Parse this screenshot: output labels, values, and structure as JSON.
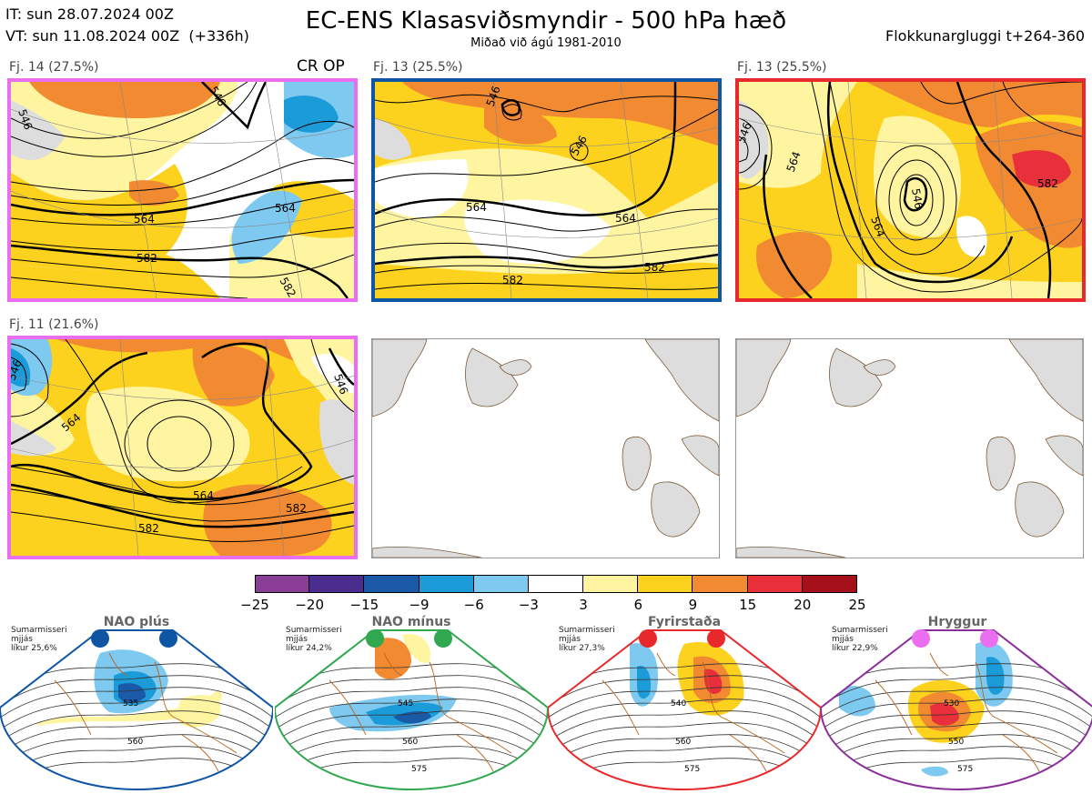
{
  "header": {
    "it_line": "IT: sun 28.07.2024 00Z",
    "vt_line": "VT: sun 11.08.2024 00Z  (+336h)",
    "title": "EC-ENS Klasasviðsmyndir - 500 hPa hæð",
    "subtitle": "Miðað við ágú 1981-2010",
    "window": "Flokkunargluggi t+264-360"
  },
  "panels": [
    {
      "label": "Fj. 14 (27.5%)",
      "extra": "CR OP",
      "border": "#ea6ff0"
    },
    {
      "label": "Fj. 13 (25.5%)",
      "extra": "",
      "border": "#0e55a4"
    },
    {
      "label": "Fj. 13 (25.5%)",
      "extra": "",
      "border": "#e8292b"
    },
    {
      "label": "Fj. 11 (21.6%)",
      "extra": "",
      "border": "#ea6ff0"
    },
    {
      "label": "",
      "extra": "",
      "border": "#888888"
    },
    {
      "label": "",
      "extra": "",
      "border": "#888888"
    }
  ],
  "contour_labels": {
    "p1": [
      "546",
      "546",
      "564",
      "564",
      "582",
      "582"
    ],
    "p2": [
      "546",
      "546",
      "564",
      "564",
      "582",
      "582"
    ],
    "p3": [
      "546",
      "546",
      "564",
      "564",
      "582"
    ],
    "p4": [
      "546",
      "546",
      "564",
      "564",
      "582",
      "582"
    ]
  },
  "chart_data": {
    "type": "heatmap",
    "title": "EC-ENS Klasasviðsmyndir - 500 hPa hæð",
    "colorbar": {
      "ticks": [
        "−25",
        "−20",
        "−15",
        "−9",
        "−6",
        "−3",
        "3",
        "6",
        "9",
        "15",
        "20",
        "25"
      ],
      "colors": [
        "#8a3e98",
        "#4a2d8f",
        "#1a5aa6",
        "#1c9bd9",
        "#7ec9ef",
        "#ffffff",
        "#fff5a0",
        "#fcd21e",
        "#f28a32",
        "#e8303a",
        "#a6101a"
      ]
    }
  },
  "regimes": [
    {
      "name": "NAO plús",
      "season": "Sumarmisseri",
      "type": "mjjás",
      "prob": "líkur 25,6%",
      "color": "#0e55a4",
      "labels": [
        "535",
        "560"
      ]
    },
    {
      "name": "NAO mínus",
      "season": "Sumarmisseri",
      "type": "mjjás",
      "prob": "líkur 24,2%",
      "color": "#2fa84f",
      "labels": [
        "545",
        "560",
        "575"
      ]
    },
    {
      "name": "Fyrirstaða",
      "season": "Sumarmisseri",
      "type": "mjjás",
      "prob": "líkur 27,3%",
      "color": "#e8292b",
      "labels": [
        "540",
        "560",
        "575"
      ]
    },
    {
      "name": "Hryggur",
      "season": "Sumarmisseri",
      "type": "mjjás",
      "prob": "líkur 22,9%",
      "color": "#8a2f9a",
      "labels": [
        "530",
        "550",
        "575"
      ]
    }
  ]
}
